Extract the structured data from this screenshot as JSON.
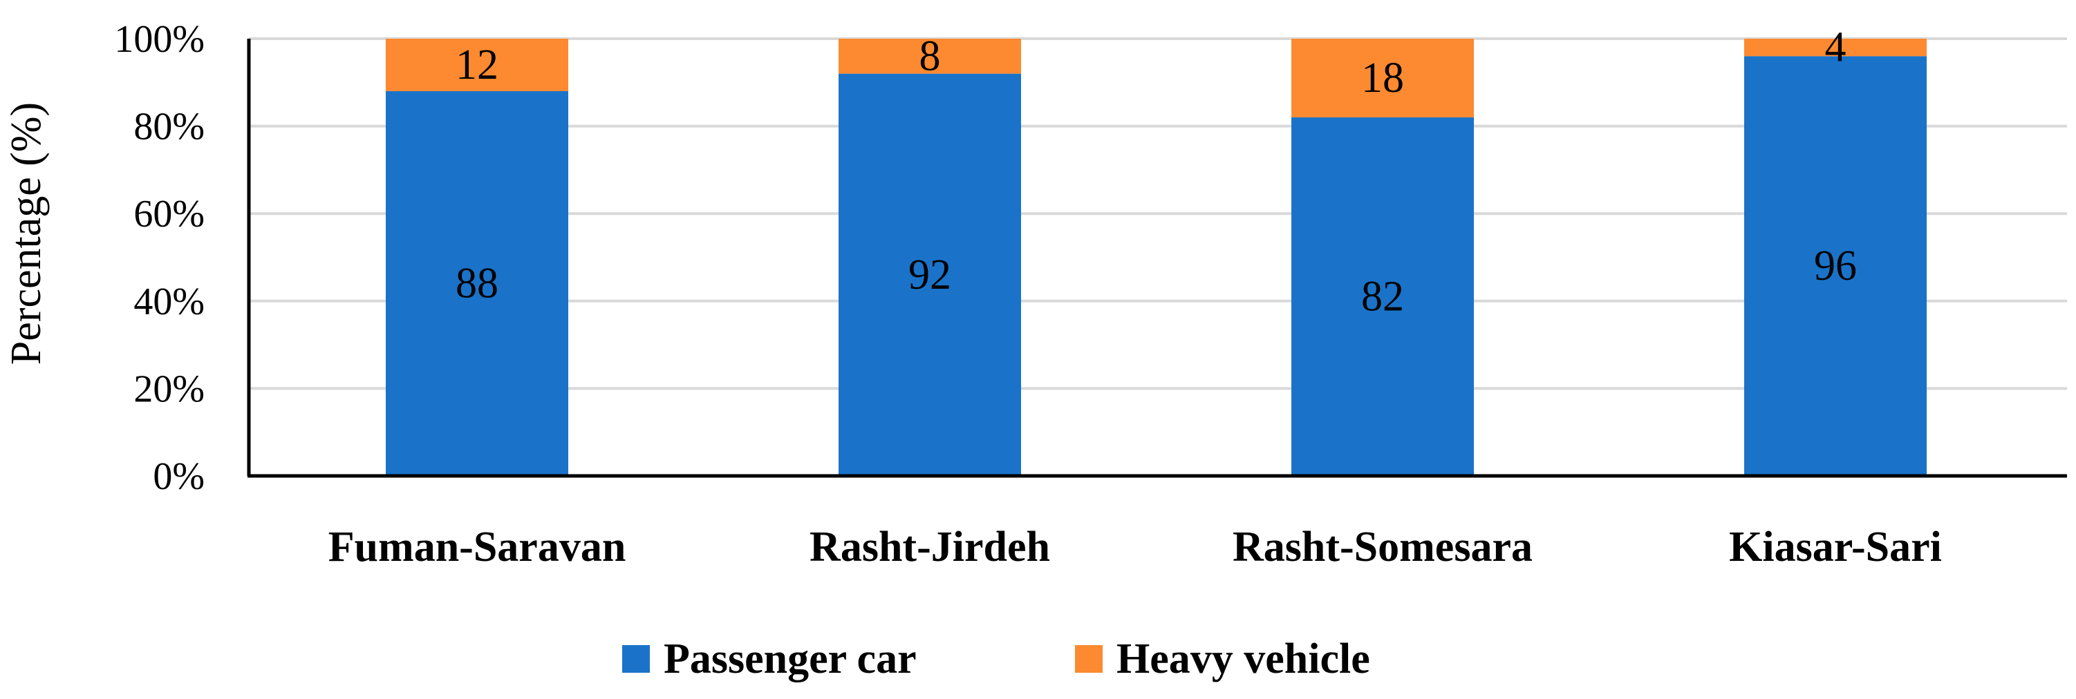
{
  "chart_data": {
    "type": "bar",
    "stacked": true,
    "percent_stacked": true,
    "categories": [
      "Fuman-Saravan",
      "Rasht-Jirdeh",
      "Rasht-Somesara",
      "Kiasar-Sari"
    ],
    "series": [
      {
        "name": "Passenger car",
        "values": [
          88,
          92,
          82,
          96
        ],
        "color": "#1a73c9"
      },
      {
        "name": "Heavy vehicle",
        "values": [
          12,
          8,
          18,
          4
        ],
        "color": "#fd8a30"
      }
    ],
    "title": "",
    "xlabel": "",
    "ylabel": "Percentage (%)",
    "ylim": [
      0,
      100
    ],
    "yticks": [
      "0%",
      "20%",
      "40%",
      "60%",
      "80%",
      "100%"
    ],
    "grid": true,
    "legend_position": "bottom"
  }
}
